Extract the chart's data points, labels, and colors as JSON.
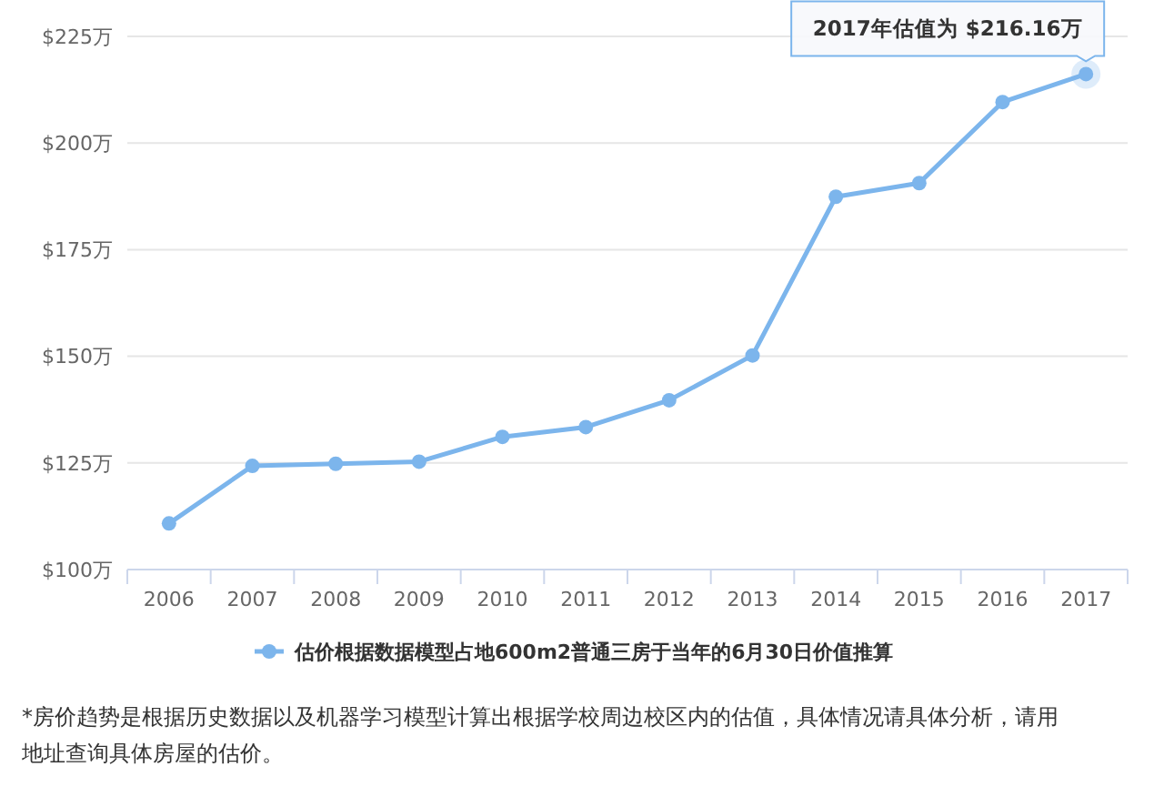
{
  "chart_data": {
    "type": "line",
    "categories": [
      "2006",
      "2007",
      "2008",
      "2009",
      "2010",
      "2011",
      "2012",
      "2013",
      "2014",
      "2015",
      "2016",
      "2017"
    ],
    "series": [
      {
        "name": "估价根据数据模型占地600m2普通三房于当年的6月30日价值推算",
        "color": "#7cb5ec",
        "values": [
          110.8,
          124.3,
          124.8,
          125.3,
          131.1,
          133.4,
          139.7,
          150.2,
          187.4,
          190.6,
          209.6,
          216.16
        ]
      }
    ],
    "ylim": [
      100,
      225
    ],
    "yticks": [
      {
        "value": 100,
        "label": "$100万"
      },
      {
        "value": 125,
        "label": "$125万"
      },
      {
        "value": 150,
        "label": "$150万"
      },
      {
        "value": 175,
        "label": "$175万"
      },
      {
        "value": 200,
        "label": "$200万"
      },
      {
        "value": 225,
        "label": "$225万"
      }
    ],
    "grid": "y",
    "legend": "bottom",
    "marker": "circle",
    "line_style": "solid",
    "annotations": [
      {
        "text": "2017年估值为 $216.16万",
        "x": "2017",
        "y": 216.16
      },
      "*房价趋势是根据历史数据以及机器学习模型计算出根据学校周边校区内的估值，具体情况请具体分析，请用地址查询具体房屋的估价。"
    ]
  }
}
